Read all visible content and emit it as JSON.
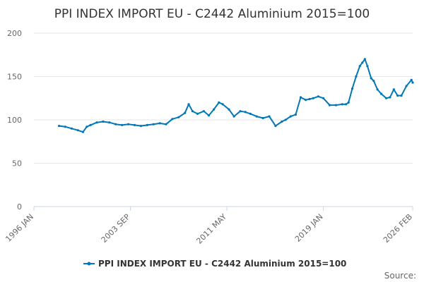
{
  "chart_data": {
    "type": "line",
    "title": "PPI INDEX IMPORT EU - C2442 Aluminium 2015=100",
    "xlabel": "",
    "ylabel": "",
    "ylim": [
      0,
      200
    ],
    "yticks": [
      0,
      50,
      100,
      150,
      200
    ],
    "xlim": [
      1996.0,
      2026.1
    ],
    "xticks": [
      {
        "value": 1996.0,
        "label": "1996 JAN"
      },
      {
        "value": 2003.67,
        "label": "2003 SEP"
      },
      {
        "value": 2011.33,
        "label": "2011 MAY"
      },
      {
        "value": 2019.0,
        "label": "2019 JAN"
      },
      {
        "value": 2026.1,
        "label": "2026 FEB"
      }
    ],
    "legend_position": "bottom",
    "grid": true,
    "series": [
      {
        "name": "PPI INDEX IMPORT EU - C2442 Aluminium 2015=100",
        "color": "#0077b6",
        "x": [
          1998.0,
          1998.5,
          1999.0,
          1999.5,
          1999.9,
          2000.2,
          2000.5,
          2001.0,
          2001.5,
          2002.0,
          2002.5,
          2003.0,
          2003.5,
          2004.0,
          2004.5,
          2005.0,
          2005.5,
          2006.0,
          2006.5,
          2007.0,
          2007.5,
          2008.0,
          2008.3,
          2008.6,
          2009.0,
          2009.5,
          2009.9,
          2010.3,
          2010.7,
          2011.0,
          2011.5,
          2011.9,
          2012.4,
          2012.8,
          2013.2,
          2013.7,
          2014.2,
          2014.7,
          2015.2,
          2015.7,
          2016.0,
          2016.4,
          2016.8,
          2017.2,
          2017.6,
          2017.9,
          2018.2,
          2018.6,
          2019.0,
          2019.5,
          2020.0,
          2020.5,
          2020.8,
          2021.0,
          2021.3,
          2021.6,
          2021.9,
          2022.1,
          2022.3,
          2022.5,
          2022.8,
          2023.0,
          2023.3,
          2023.6,
          2024.0,
          2024.3,
          2024.6,
          2024.9,
          2025.2,
          2025.6,
          2026.0,
          2026.1
        ],
        "values": [
          93,
          92,
          90,
          88,
          86,
          92,
          94,
          97,
          98,
          97,
          95,
          94,
          95,
          94,
          93,
          94,
          95,
          96,
          95,
          101,
          103,
          108,
          118,
          110,
          107,
          110,
          105,
          112,
          120,
          118,
          112,
          104,
          110,
          109,
          107,
          104,
          102,
          104,
          93,
          98,
          100,
          104,
          106,
          126,
          123,
          124,
          125,
          127,
          125,
          117,
          117,
          118,
          118,
          120,
          136,
          150,
          162,
          166,
          170,
          162,
          148,
          145,
          135,
          130,
          125,
          126,
          135,
          128,
          128,
          139,
          146,
          143
        ]
      }
    ]
  },
  "source_label": "Source:"
}
